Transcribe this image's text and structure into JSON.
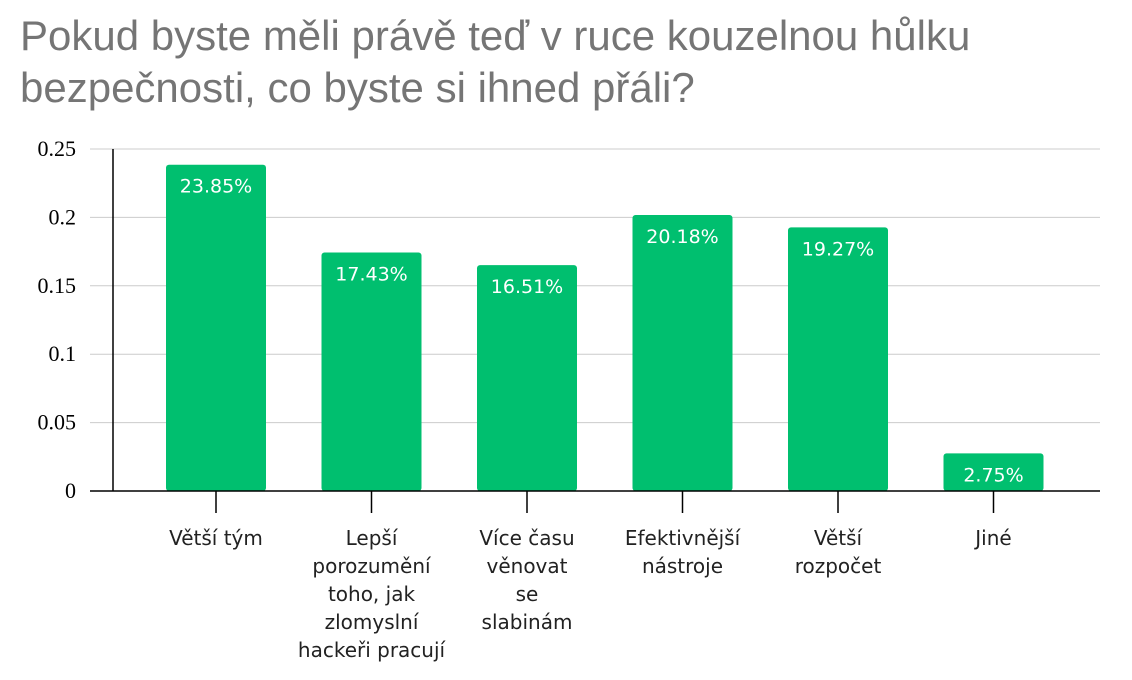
{
  "chart_data": {
    "type": "bar",
    "title": "Pokud byste měli právě teď v ruce kouzelnou hůlku bezpečnosti, co byste si ihned přáli?",
    "categories": [
      [
        "Větší tým"
      ],
      [
        "Lepší",
        "porozumění",
        "toho, jak",
        "zlomyslní",
        "hackeři pracují"
      ],
      [
        "Více času",
        "věnovat",
        "se",
        "slabinám"
      ],
      [
        "Efektivnější",
        "nástroje"
      ],
      [
        "Větší",
        "rozpočet"
      ],
      [
        "Jiné"
      ]
    ],
    "values": [
      0.2385,
      0.1743,
      0.1651,
      0.2018,
      0.1927,
      0.0275
    ],
    "data_labels": [
      "23.85%",
      "17.43%",
      "16.51%",
      "20.18%",
      "19.27%",
      "2.75%"
    ],
    "y_ticks": [
      "0",
      "0.05",
      "0.1",
      "0.15",
      "0.2",
      "0.25"
    ],
    "ylim": [
      0,
      0.25
    ],
    "grid": true,
    "bar_color": "#00bf6f",
    "grid_color": "#cccccc",
    "axis_color": "#000000"
  }
}
